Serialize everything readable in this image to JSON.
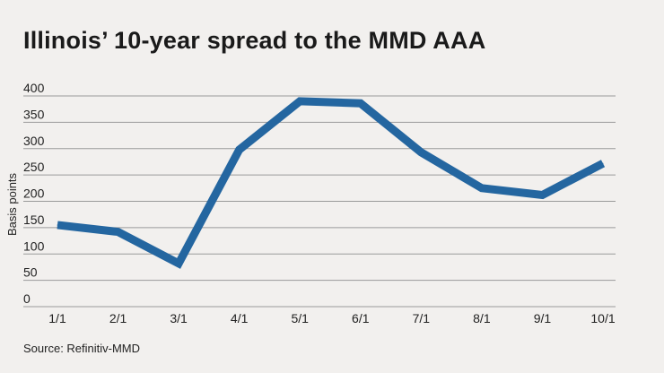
{
  "chart_data": {
    "type": "line",
    "title": "Illinois’ 10-year spread to the MMD AAA",
    "source": "Source: Refinitiv-MMD",
    "xlabel": "",
    "ylabel": "Basis points",
    "categories": [
      "1/1",
      "2/1",
      "3/1",
      "4/1",
      "5/1",
      "6/1",
      "7/1",
      "8/1",
      "9/1",
      "10/1"
    ],
    "series": [
      {
        "values": [
          155,
          142,
          82,
          298,
          390,
          386,
          293,
          225,
          212,
          272
        ]
      }
    ],
    "yticks": [
      0,
      50,
      100,
      150,
      200,
      250,
      300,
      350,
      400
    ],
    "ylim": [
      0,
      400
    ],
    "grid": true,
    "legend": "none",
    "line_color": "#2466a0",
    "grid_color": "#9a9a9a"
  }
}
